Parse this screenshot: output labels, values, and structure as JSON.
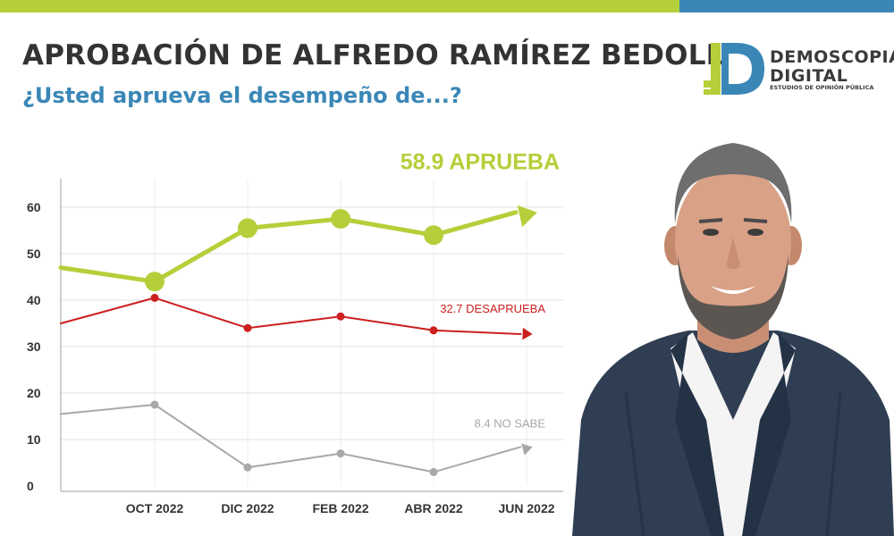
{
  "header": {
    "title": "APROBACIÓN DE ALFREDO RAMÍREZ BEDOLLA",
    "subtitle": "¿Usted aprueva el desempeño de...?"
  },
  "logo": {
    "line1": "DEMOSCOPIA",
    "line2": "DIGITAL",
    "tagline": "ESTUDIOS DE OPINIÓN PÚBLICA"
  },
  "colors": {
    "green": "#b5cf3a",
    "blue": "#3a87b7",
    "red": "#cc1f1f",
    "gray": "#a8a8a8",
    "title": "#333333"
  },
  "photo": {
    "icon": "person-photo"
  },
  "chart_data": {
    "type": "line",
    "categories": [
      "OCT 2022",
      "DIC 2022",
      "FEB 2022",
      "ABR 2022",
      "JUN 2022"
    ],
    "ylim": [
      0,
      65
    ],
    "yticks": [
      0,
      10,
      20,
      30,
      40,
      50,
      60
    ],
    "grid": true,
    "series": [
      {
        "name": "APRUEBA",
        "color": "#b5cf3a",
        "start": 47,
        "values": [
          44,
          55.5,
          57.5,
          54,
          58.9
        ],
        "end_label": "58.9 APRUEBA"
      },
      {
        "name": "DESAPRUEBA",
        "color": "#cc1f1f",
        "start": 35,
        "values": [
          40.5,
          34,
          36.5,
          33.5,
          32.7
        ],
        "end_label": "32.7 DESAPRUEBA"
      },
      {
        "name": "NO SABE",
        "color": "#a8a8a8",
        "start": 15.5,
        "values": [
          17.5,
          4,
          7,
          3,
          8.4
        ],
        "end_label": "8.4 NO SABE"
      }
    ]
  }
}
